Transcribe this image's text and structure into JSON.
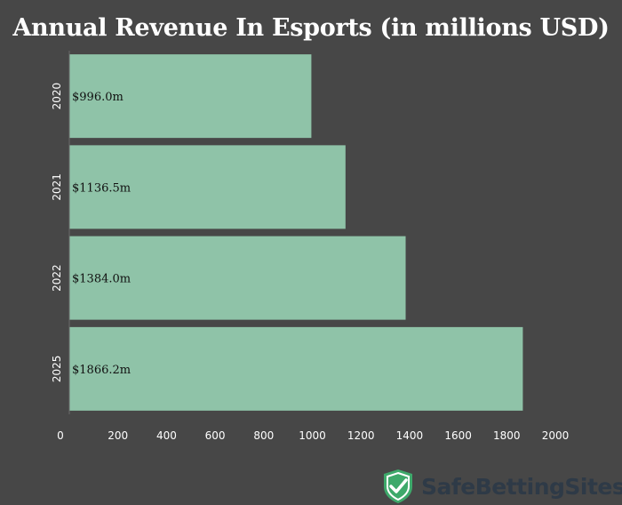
{
  "chart_data": {
    "type": "bar",
    "orientation": "horizontal",
    "title": "Annual Revenue In Esports (in millions USD)",
    "categories": [
      "2020",
      "2021",
      "2022",
      "2025"
    ],
    "values": [
      996.0,
      1136.5,
      1384.0,
      1866.2
    ],
    "data_labels": [
      "$996.0m",
      "$1136.5m",
      "$1384.0m",
      "$1866.2m"
    ],
    "xlim": [
      0,
      2000
    ],
    "xticks": [
      0,
      200,
      400,
      600,
      800,
      1000,
      1200,
      1400,
      1600,
      1800,
      2000
    ],
    "grid": false,
    "colors": {
      "bar": "#8fc3a8",
      "background": "#474747",
      "text": "#ffffff"
    }
  },
  "branding": {
    "logo_text": "SafeBettingSites",
    "logo_icon": "shield-check-icon",
    "colors": {
      "shield": "#3ea96b",
      "text": "#2e3a47"
    }
  }
}
